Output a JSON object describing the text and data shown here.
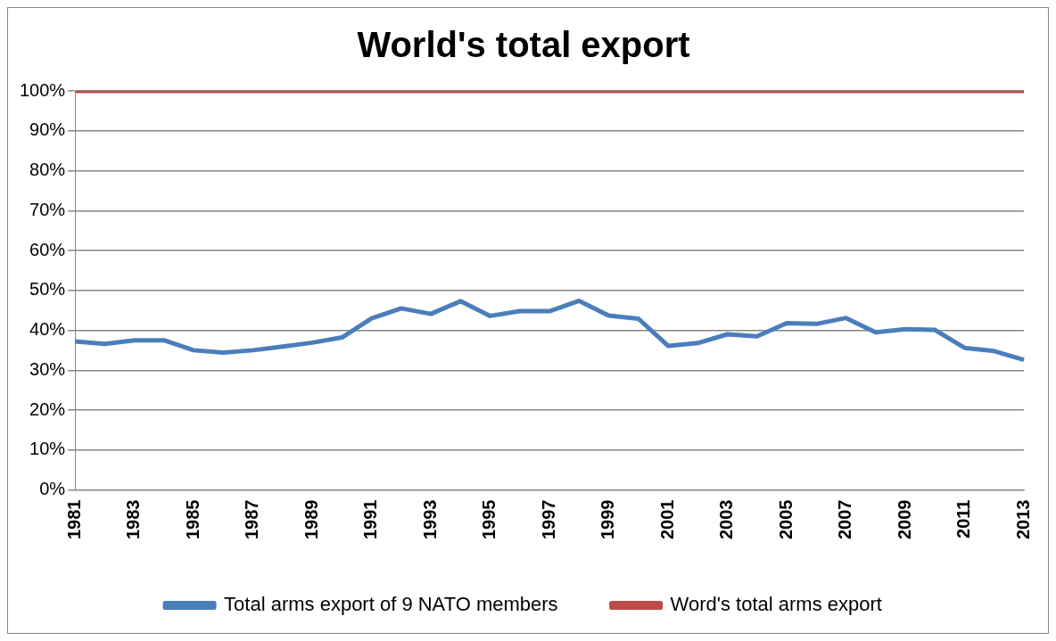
{
  "chart_data": {
    "type": "line",
    "title": "World's total export",
    "categories": [
      "1981",
      null,
      "1983",
      null,
      "1985",
      null,
      "1987",
      null,
      "1989",
      null,
      "1991",
      null,
      "1993",
      null,
      "1995",
      null,
      "1997",
      null,
      "1999",
      null,
      "2001",
      null,
      "2003",
      null,
      "2005",
      null,
      "2007",
      null,
      "2009",
      null,
      "2011",
      null,
      "2013"
    ],
    "series": [
      {
        "name": "Total arms export of 9 NATO members",
        "color": "#4a7ebb",
        "values": [
          37.2,
          36.6,
          37.5,
          37.5,
          35,
          34.4,
          35,
          35.9,
          36.9,
          38.2,
          43,
          45.5,
          44.1,
          47.3,
          43.6,
          44.8,
          44.8,
          47.4,
          43.7,
          42.9,
          36.1,
          36.8,
          39,
          38.5,
          41.8,
          41.6,
          43.1,
          39.5,
          40.3,
          40.1,
          35.6,
          34.8,
          32.6
        ]
      },
      {
        "name": "Word's total arms export",
        "color": "#be4b48",
        "values": [
          100,
          100,
          100,
          100,
          100,
          100,
          100,
          100,
          100,
          100,
          100,
          100,
          100,
          100,
          100,
          100,
          100,
          100,
          100,
          100,
          100,
          100,
          100,
          100,
          100,
          100,
          100,
          100,
          100,
          100,
          100,
          100,
          100
        ]
      }
    ],
    "ylim": [
      0,
      100
    ],
    "yticks": [
      {
        "value": 0,
        "label": "0%"
      },
      {
        "value": 10,
        "label": "10%"
      },
      {
        "value": 20,
        "label": "20%"
      },
      {
        "value": 30,
        "label": "30%"
      },
      {
        "value": 40,
        "label": "40%"
      },
      {
        "value": 50,
        "label": "50%"
      },
      {
        "value": 60,
        "label": "60%"
      },
      {
        "value": 70,
        "label": "70%"
      },
      {
        "value": 80,
        "label": "80%"
      },
      {
        "value": 90,
        "label": "90%"
      },
      {
        "value": 100,
        "label": "100%"
      }
    ],
    "grid": "y",
    "legend": "bottom",
    "marker": "none",
    "line_style": "solid"
  }
}
